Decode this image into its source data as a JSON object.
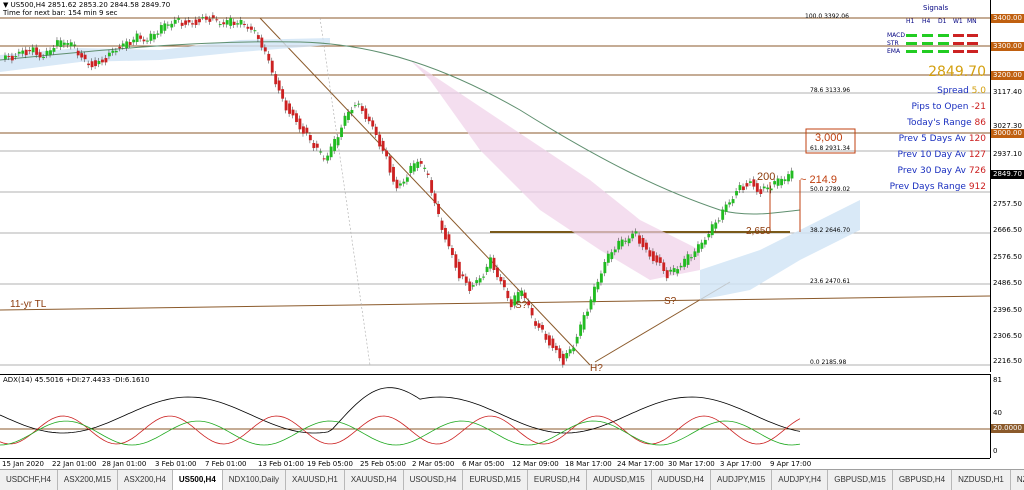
{
  "header": {
    "symbol_line": "▼ US500,H4  2851.62 2853.20 2844.58 2849.70",
    "time_line": "Time for next bar: 154 min 9 sec"
  },
  "indicator_header": "ADX(14) 45.5016 +DI:27.4433 -DI:6.1610",
  "signals": {
    "title": "Signals",
    "timeframes": [
      "H1",
      "H4",
      "D1",
      "W1",
      "MN"
    ],
    "rows": [
      {
        "label": "MACD",
        "colors": [
          "#22cc22",
          "#22cc22",
          "#22cc22",
          "#cc2222",
          "#cc2222"
        ]
      },
      {
        "label": "STR",
        "colors": [
          "#22cc22",
          "#22cc22",
          "#22cc22",
          "#cc2222",
          "#cc2222"
        ]
      },
      {
        "label": "EMA",
        "colors": [
          "#22cc22",
          "#22cc22",
          "#22cc22",
          "#cc2222",
          "#cc2222"
        ]
      }
    ]
  },
  "current_price": "2849.70",
  "info_panel": [
    {
      "label": "Spread",
      "value": "5.0"
    },
    {
      "label": "Pips to Open",
      "value": "-21"
    },
    {
      "label": "Today's Range",
      "value": "86"
    },
    {
      "label": "Prev 5 Days Av",
      "value": "120"
    },
    {
      "label": "Prev 10 Day Av",
      "value": "127"
    },
    {
      "label": "Prev 30 Day Av",
      "value": "726"
    },
    {
      "label": "Prev Days Range",
      "value": "912"
    }
  ],
  "price_axis": [
    "3392.06",
    "3300.00",
    "3208.80",
    "3117.40",
    "3027.30",
    "2937.10",
    "2849.70",
    "2757.50",
    "2666.50",
    "2576.50",
    "2486.50",
    "2396.50",
    "2306.50",
    "2216.50"
  ],
  "price_axis_boxes": [
    {
      "text": "3400.00",
      "color": "#c06010"
    },
    {
      "text": "3300.00",
      "color": "#c06010"
    },
    {
      "text": "3200.00",
      "color": "#c06010"
    },
    {
      "text": "3000.00",
      "color": "#c06010"
    },
    {
      "text": "2849.70",
      "color": "#000000"
    }
  ],
  "fib_levels": [
    {
      "label": "100.0  3392.06"
    },
    {
      "label": "78.6  3133.96"
    },
    {
      "label": "61.8  2931.34"
    },
    {
      "label": "50.0  2789.02"
    },
    {
      "label": "38.2  2646.70"
    },
    {
      "label": "23.6  2470.61"
    },
    {
      "label": "0.0  2185.98"
    }
  ],
  "annotations": {
    "level_3000": "3,000",
    "level_200": "200",
    "level_2650": "2,650",
    "level_214": "~ 214.9",
    "tl_label": "11-yr TL",
    "s1": "S?",
    "s2": "S?",
    "head": "H?"
  },
  "indicator_axis": [
    "81",
    "40",
    "20.0000",
    "0"
  ],
  "time_axis": [
    "15 Jan 2020",
    "22 Jan 01:00",
    "28 Jan 01:00",
    "3 Feb 01:00",
    "7 Feb 01:00",
    "13 Feb 01:00",
    "19 Feb 05:00",
    "25 Feb 05:00",
    "2 Mar 05:00",
    "6 Mar 05:00",
    "12 Mar 09:00",
    "18 Mar 17:00",
    "24 Mar 17:00",
    "30 Mar 17:00",
    "3 Apr 17:00",
    "9 Apr 17:00"
  ],
  "tabs": [
    "USDCHF,H4",
    "ASX200,M15",
    "ASX200,H4",
    "US500,H4",
    "NDX100,Daily",
    "XAUUSD,H1",
    "XAUUSD,H4",
    "USOUSD,H4",
    "EURUSD,M15",
    "EURUSD,H4",
    "AUDUSD,M15",
    "AUDUSD,H4",
    "AUDJPY,M15",
    "AUDJPY,H4",
    "GBPUSD,M15",
    "GBPUSD,H4",
    "NZDUSD,H1",
    "NZDU"
  ],
  "active_tab": "US500,H4",
  "chart_data": {
    "type": "candlestick",
    "instrument": "US500",
    "timeframe": "H4",
    "ylim": [
      2180,
      3420
    ],
    "closes_approx": [
      3250,
      3270,
      3280,
      3260,
      3300,
      3310,
      3290,
      3240,
      3230,
      3250,
      3280,
      3300,
      3330,
      3320,
      3350,
      3370,
      3380,
      3370,
      3385,
      3390,
      3370,
      3380,
      3380,
      3360,
      3300,
      3200,
      3100,
      3050,
      3000,
      2950,
      2900,
      2960,
      3050,
      3100,
      3050,
      2980,
      2900,
      2800,
      2850,
      2900,
      2840,
      2700,
      2600,
      2500,
      2450,
      2480,
      2550,
      2480,
      2400,
      2450,
      2350,
      2300,
      2250,
      2200,
      2250,
      2350,
      2450,
      2550,
      2600,
      2620,
      2640,
      2580,
      2550,
      2500,
      2520,
      2560,
      2600,
      2650,
      2700,
      2750,
      2800,
      2820,
      2790,
      2810,
      2830,
      2850
    ]
  }
}
